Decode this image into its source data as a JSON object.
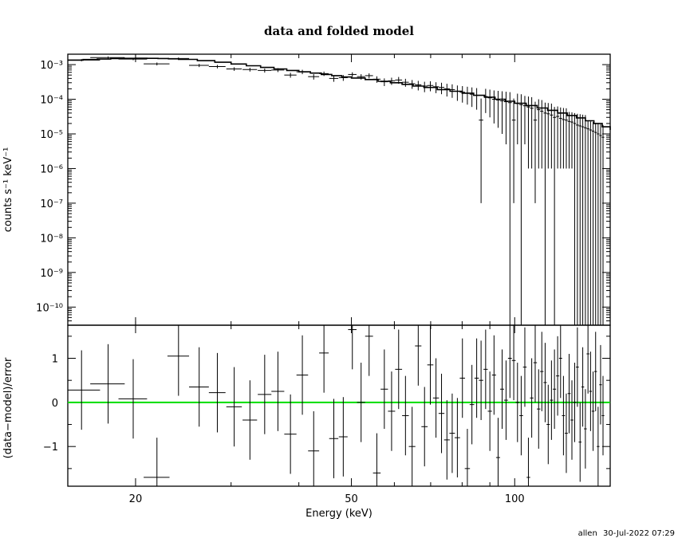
{
  "chart_data": [
    {
      "panel": "top",
      "type": "scatter",
      "title": "data and folded model",
      "xlabel": "",
      "ylabel": "counts s⁻¹ keV⁻¹",
      "xscale": "log",
      "yscale": "log",
      "xlim": [
        15,
        150
      ],
      "ylim": [
        3e-11,
        0.002
      ],
      "y_ticks": [
        {
          "v": 1e-10,
          "label": "10⁻¹⁰"
        },
        {
          "v": 1e-09,
          "label": "10⁻⁹"
        },
        {
          "v": 1e-08,
          "label": "10⁻⁸"
        },
        {
          "v": 1e-07,
          "label": "10⁻⁷"
        },
        {
          "v": 1e-06,
          "label": "10⁻⁶"
        },
        {
          "v": 1e-05,
          "label": "10⁻⁵"
        },
        {
          "v": 0.0001,
          "label": "10⁻⁴"
        },
        {
          "v": 0.001,
          "label": "10⁻³"
        }
      ],
      "series": [
        {
          "kind": "data",
          "x": [
            15.9,
            17.8,
            19.8,
            21.9,
            24.0,
            26.2,
            28.3,
            30.4,
            32.5,
            34.6,
            36.6,
            38.6,
            40.6,
            42.6,
            44.5,
            46.4,
            48.3,
            50.2,
            52.1,
            53.9,
            55.7,
            57.5,
            59.3,
            61.1,
            62.9,
            64.7,
            66.4,
            68.2,
            69.9,
            71.6,
            73.3,
            75.0,
            76.7,
            78.4,
            80.1,
            81.8,
            83.4,
            85.1,
            86.7,
            88.4,
            90.0,
            91.6,
            93.2,
            94.8,
            96.4,
            98.0,
            99.6,
            101.2,
            102.8,
            104.4,
            106.0,
            107.5,
            109.1,
            110.7,
            112.2,
            113.8,
            115.3,
            116.9,
            118.4,
            120.0,
            121.5,
            123.0,
            124.5,
            126.0,
            127.5,
            129.0,
            130.5,
            132.0,
            133.5,
            135.0,
            136.5,
            138.0,
            139.5,
            141.0,
            142.5,
            144.0,
            145.5
          ],
          "xerr": [
            1.3,
            1.3,
            1.2,
            1.2,
            1.1,
            1.1,
            1.0,
            1.0,
            1.0,
            1.0,
            1.0,
            1.0,
            1.0,
            1.0,
            0.9,
            0.9,
            0.9,
            0.9,
            0.9,
            0.9,
            0.9,
            0.9,
            0.9,
            0.9,
            0.9,
            0.9,
            0.9,
            0.9,
            0.9,
            0.9,
            0.9,
            0.9,
            0.9,
            0.9,
            0.9,
            0.9,
            0.8,
            0.8,
            0.8,
            0.8,
            0.8,
            0.8,
            0.8,
            0.8,
            0.8,
            0.8,
            0.8,
            0.8,
            0.8,
            0.8,
            0.8,
            0.8,
            0.8,
            0.8,
            0.8,
            0.8,
            0.8,
            0.8,
            0.8,
            0.8,
            0.8,
            0.8,
            0.8,
            0.8,
            0.8,
            0.8,
            0.8,
            0.8,
            0.8,
            0.8,
            0.8,
            0.8,
            0.8,
            0.8,
            0.8,
            0.8,
            0.8
          ],
          "y": [
            0.00135,
            0.0016,
            0.00145,
            0.00105,
            0.0015,
            0.00095,
            0.00088,
            0.00075,
            0.00072,
            0.00068,
            0.0007,
            0.0005,
            0.00062,
            0.00045,
            0.00055,
            0.0004,
            0.00042,
            0.00052,
            0.00045,
            0.00048,
            0.00038,
            0.00032,
            0.00034,
            0.00036,
            0.00031,
            0.00028,
            0.00026,
            0.00024,
            0.00025,
            0.00023,
            0.00022,
            0.0002,
            0.00019,
            0.00017,
            0.00016,
            0.00015,
            0.00014,
            0.00013,
            2.5e-05,
            0.00012,
            0.00011,
            0.0001,
            9.5e-05,
            9e-05,
            8.5e-05,
            8e-05,
            2.5e-05,
            7.5e-05,
            7e-05,
            6.5e-05,
            6e-05,
            5.5e-05,
            2.5e-05,
            5e-05,
            4.5e-05,
            4e-05,
            3.8e-05,
            3.5e-05,
            3e-05,
            3.2e-05,
            2.8e-05,
            2.6e-05,
            2.5e-05,
            2.3e-05,
            2.2e-05,
            2e-05,
            1.8e-05,
            1.7e-05,
            1.6e-05,
            1.5e-05,
            1.4e-05,
            1.3e-05,
            1.2e-05,
            1.1e-05,
            1e-05,
            9e-06,
            8e-06
          ],
          "yerr_lo": [
            0.0001,
            0.00012,
            0.00011,
            0.0001,
            0.00011,
            0.0001,
            0.0001,
            9e-05,
            9e-05,
            9e-05,
            9e-05,
            8e-05,
            9e-05,
            8e-05,
            8e-05,
            8e-05,
            8e-05,
            8e-05,
            8e-05,
            8e-05,
            8e-05,
            8e-05,
            8e-05,
            8e-05,
            8e-05,
            8e-05,
            8e-05,
            8e-05,
            8e-05,
            8e-05,
            8e-05,
            8e-05,
            8e-05,
            8e-05,
            8e-05,
            8e-05,
            8e-05,
            8e-05,
            2.49e-05,
            8e-05,
            8e-05,
            8e-05,
            8e-05,
            8e-05,
            8e-05,
            8e-05,
            2.49e-05,
            7e-05,
            7e-05,
            6e-05,
            5.9e-05,
            5.4e-05,
            2.49e-05,
            4.9e-05,
            4.4e-05,
            4e-05,
            3.7e-05,
            3.4e-05,
            3e-05,
            3.1e-05,
            2.7e-05,
            2.5e-05,
            2.4e-05,
            2.2e-05,
            2.1e-05,
            2e-05,
            1.8e-05,
            1.7e-05,
            1.6e-05,
            1.5e-05,
            1.4e-05,
            1.3e-05,
            1.2e-05,
            1.1e-05,
            1e-05,
            9e-06,
            8e-06
          ],
          "yerr_hi": [
            0.0001,
            0.00012,
            0.00011,
            0.0001,
            0.00011,
            0.0001,
            0.0001,
            9e-05,
            9e-05,
            9e-05,
            9e-05,
            8e-05,
            9e-05,
            8e-05,
            8e-05,
            8e-05,
            8e-05,
            8e-05,
            8e-05,
            8e-05,
            8e-05,
            8e-05,
            8e-05,
            8e-05,
            8e-05,
            8e-05,
            8e-05,
            8e-05,
            8e-05,
            8e-05,
            8e-05,
            8e-05,
            8e-05,
            8e-05,
            8e-05,
            8e-05,
            8e-05,
            8e-05,
            8e-05,
            8e-05,
            8e-05,
            8e-05,
            8e-05,
            8e-05,
            8e-05,
            8e-05,
            8e-05,
            7e-05,
            7e-05,
            6e-05,
            6e-05,
            6e-05,
            6e-05,
            5e-05,
            5e-05,
            4e-05,
            4e-05,
            4e-05,
            3e-05,
            3e-05,
            3e-05,
            3e-05,
            3e-05,
            2e-05,
            2e-05,
            2e-05,
            2e-05,
            2e-05,
            2e-05,
            2e-05,
            1e-05,
            1e-05,
            1e-05,
            1e-05,
            1e-05,
            1e-05,
            1e-05
          ]
        },
        {
          "kind": "model",
          "style": "step",
          "x": [
            15,
            16,
            17,
            18,
            19,
            20,
            21,
            22,
            23,
            24,
            26,
            28,
            30,
            32,
            34,
            36,
            38,
            40,
            42,
            44,
            46,
            48,
            50,
            53,
            56,
            59,
            62,
            65,
            68,
            72,
            76,
            80,
            84,
            88,
            92,
            96,
            100,
            105,
            110,
            115,
            120,
            125,
            130,
            135,
            140,
            145,
            150
          ],
          "y": [
            0.00135,
            0.0014,
            0.00145,
            0.0015,
            0.00152,
            0.00153,
            0.00152,
            0.0015,
            0.00147,
            0.00142,
            0.0013,
            0.00117,
            0.00104,
            0.00093,
            0.00083,
            0.00075,
            0.00068,
            0.00062,
            0.00057,
            0.00052,
            0.00048,
            0.00044,
            0.00041,
            0.00037,
            0.00033,
            0.0003,
            0.00027,
            0.00024,
            0.00022,
            0.00019,
            0.00017,
            0.00015,
            0.00013,
            0.000115,
            0.0001,
            8.8e-05,
            7.7e-05,
            6.6e-05,
            5.6e-05,
            4.8e-05,
            4e-05,
            3.4e-05,
            2.9e-05,
            2.4e-05,
            2e-05,
            1.6e-05,
            1.3e-05
          ]
        }
      ]
    },
    {
      "panel": "bottom",
      "type": "scatter",
      "xlabel": "Energy (keV)",
      "ylabel": "(data−model)/error",
      "xscale": "log",
      "yscale": "linear",
      "xlim": [
        15,
        150
      ],
      "ylim": [
        -1.9,
        1.75
      ],
      "x_ticks": [
        {
          "v": 20,
          "label": "20"
        },
        {
          "v": 50,
          "label": "50"
        },
        {
          "v": 100,
          "label": "100"
        }
      ],
      "y_ticks": [
        {
          "v": -1,
          "label": "−1"
        },
        {
          "v": 0,
          "label": "0"
        },
        {
          "v": 1,
          "label": "1"
        }
      ],
      "zero_line_color": "#00dd00",
      "series": [
        {
          "kind": "residuals",
          "x": [
            15.9,
            17.8,
            19.8,
            21.9,
            24.0,
            26.2,
            28.3,
            30.4,
            32.5,
            34.6,
            36.6,
            38.6,
            40.6,
            42.6,
            44.5,
            46.4,
            48.3,
            50.2,
            52.1,
            53.9,
            55.7,
            57.5,
            59.3,
            61.1,
            62.9,
            64.7,
            66.4,
            68.2,
            69.9,
            71.6,
            73.3,
            75.0,
            76.7,
            78.4,
            80.1,
            81.8,
            83.4,
            85.1,
            86.7,
            88.4,
            90.0,
            91.6,
            93.2,
            94.8,
            96.4,
            98.0,
            99.6,
            101.2,
            102.8,
            104.4,
            106.0,
            107.5,
            109.1,
            110.7,
            112.2,
            113.8,
            115.3,
            116.9,
            118.4,
            120.0,
            121.5,
            123.0,
            124.5,
            126.0,
            127.5,
            129.0,
            130.5,
            132.0,
            133.5,
            135.0,
            136.5,
            138.0,
            139.5,
            141.0,
            142.5,
            144.0,
            145.5
          ],
          "xerr": [
            1.3,
            1.3,
            1.2,
            1.2,
            1.1,
            1.1,
            1.0,
            1.0,
            1.0,
            1.0,
            1.0,
            1.0,
            1.0,
            1.0,
            0.9,
            0.9,
            0.9,
            0.9,
            0.9,
            0.9,
            0.9,
            0.9,
            0.9,
            0.9,
            0.9,
            0.9,
            0.9,
            0.9,
            0.9,
            0.9,
            0.9,
            0.9,
            0.9,
            0.9,
            0.9,
            0.9,
            0.8,
            0.8,
            0.8,
            0.8,
            0.8,
            0.8,
            0.8,
            0.8,
            0.8,
            0.8,
            0.8,
            0.8,
            0.8,
            0.8,
            0.8,
            0.8,
            0.8,
            0.8,
            0.8,
            0.8,
            0.8,
            0.8,
            0.8,
            0.8,
            0.8,
            0.8,
            0.8,
            0.8,
            0.8,
            0.8,
            0.8,
            0.8,
            0.8,
            0.8,
            0.8,
            0.8,
            0.8,
            0.8,
            0.8,
            0.8,
            0.8
          ],
          "y": [
            0.28,
            0.42,
            0.08,
            -1.7,
            1.05,
            0.35,
            0.22,
            -0.1,
            -0.4,
            0.18,
            0.25,
            -0.72,
            0.62,
            -1.1,
            1.12,
            -0.82,
            -0.78,
            1.65,
            0.0,
            1.5,
            -1.6,
            0.3,
            -0.2,
            0.75,
            -0.3,
            -1.0,
            1.28,
            -0.55,
            0.85,
            0.1,
            -0.25,
            -0.85,
            -0.7,
            -0.8,
            0.55,
            -1.5,
            -0.05,
            0.55,
            0.5,
            0.75,
            -0.2,
            0.62,
            -1.25,
            0.3,
            0.05,
            1.0,
            0.95,
            0.0,
            -0.3,
            0.8,
            -1.7,
            0.1,
            0.9,
            -0.15,
            0.7,
            0.45,
            -0.5,
            0.05,
            0.3,
            0.6,
            1.0,
            -0.3,
            -0.7,
            0.2,
            -0.4,
            0.0,
            0.8,
            -0.9,
            0.35,
            -0.6,
            1.1,
            0.25,
            -0.2,
            0.7,
            -1.0,
            0.4,
            -0.3
          ],
          "yerr": [
            0.9,
            0.9,
            0.9,
            0.9,
            0.9,
            0.9,
            0.9,
            0.9,
            0.9,
            0.9,
            0.9,
            0.9,
            0.9,
            0.9,
            0.9,
            0.9,
            0.9,
            0.9,
            0.9,
            0.9,
            0.9,
            0.9,
            0.9,
            0.9,
            0.9,
            0.9,
            0.9,
            0.9,
            0.9,
            0.9,
            0.9,
            0.9,
            0.9,
            0.9,
            0.9,
            0.9,
            0.9,
            0.9,
            0.9,
            0.9,
            0.9,
            0.9,
            0.9,
            0.9,
            0.9,
            0.9,
            0.9,
            0.9,
            0.9,
            0.9,
            0.9,
            0.9,
            0.9,
            0.9,
            0.9,
            0.9,
            0.9,
            0.9,
            0.9,
            0.9,
            0.9,
            0.9,
            0.9,
            0.9,
            0.9,
            0.9,
            0.9,
            0.9,
            0.9,
            0.9,
            0.9,
            0.9,
            0.9,
            0.9,
            0.9,
            0.9,
            0.9
          ]
        }
      ]
    }
  ],
  "footer": {
    "user": "allen",
    "timestamp": "30-Jul-2022 07:29"
  }
}
